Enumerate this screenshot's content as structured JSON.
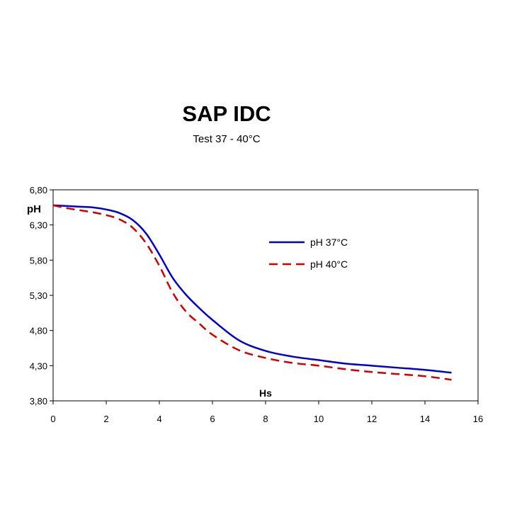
{
  "chart_data": {
    "type": "line",
    "title": "SAP IDC",
    "subtitle": "Test 37 - 40°C",
    "xlabel": "Hs",
    "ylabel": "pH",
    "xlim": [
      0,
      16
    ],
    "ylim": [
      3.8,
      6.8
    ],
    "x_ticks": [
      "0",
      "2",
      "4",
      "6",
      "8",
      "10",
      "12",
      "14",
      "16"
    ],
    "y_ticks": [
      "3,80",
      "4,30",
      "4,80",
      "5,30",
      "5,80",
      "6,30",
      "6,80"
    ],
    "grid": false,
    "legend_position": "upper-right",
    "series": [
      {
        "name": "pH 37°C",
        "color": "#0000cc",
        "style": "solid",
        "x": [
          0,
          0.5,
          1,
          1.5,
          2,
          2.5,
          3,
          3.5,
          4,
          4.5,
          5,
          5.5,
          6,
          7,
          8,
          9,
          10,
          11,
          12,
          13,
          14,
          15
        ],
        "y": [
          6.58,
          6.57,
          6.56,
          6.55,
          6.52,
          6.47,
          6.37,
          6.18,
          5.88,
          5.55,
          5.31,
          5.12,
          4.95,
          4.66,
          4.51,
          4.43,
          4.38,
          4.33,
          4.3,
          4.27,
          4.24,
          4.2
        ]
      },
      {
        "name": "pH  40°C",
        "color": "#cc0000",
        "style": "dashed",
        "x": [
          0,
          0.5,
          1,
          1.5,
          2,
          2.5,
          3,
          3.5,
          4,
          4.5,
          5,
          5.5,
          6,
          7,
          8,
          9,
          10,
          11,
          12,
          13,
          14,
          15
        ],
        "y": [
          6.58,
          6.54,
          6.51,
          6.48,
          6.44,
          6.38,
          6.26,
          6.04,
          5.72,
          5.34,
          5.07,
          4.9,
          4.74,
          4.52,
          4.41,
          4.34,
          4.3,
          4.25,
          4.21,
          4.18,
          4.15,
          4.1
        ]
      }
    ]
  }
}
